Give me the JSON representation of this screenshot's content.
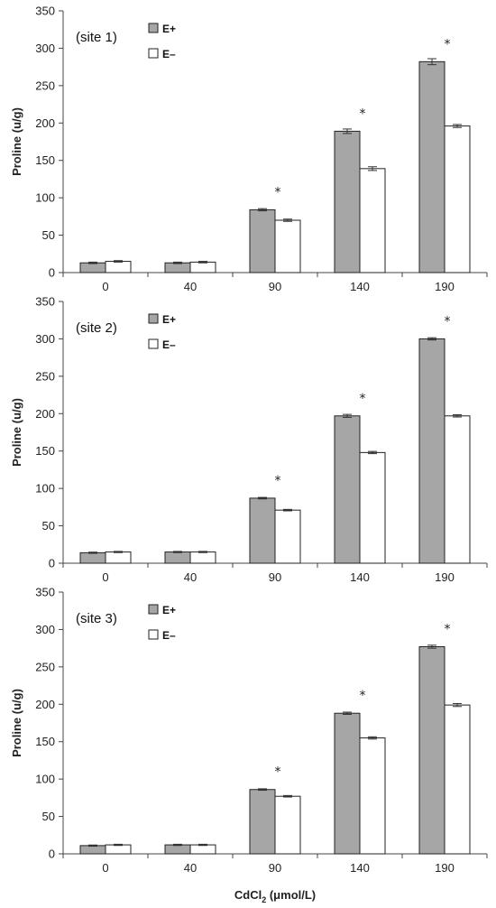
{
  "chart_data": [
    {
      "type": "bar",
      "panel_label": "(site 1)",
      "categories": [
        "0",
        "40",
        "90",
        "140",
        "190"
      ],
      "series": [
        {
          "name": "E+",
          "color": "#a6a6a6",
          "values": [
            13,
            13,
            84,
            189,
            282
          ],
          "errors": [
            1,
            1,
            1.5,
            3,
            4
          ]
        },
        {
          "name": "E–",
          "color": "#ffffff",
          "values": [
            15,
            14,
            70,
            139,
            196
          ],
          "errors": [
            1,
            1,
            1.5,
            2.5,
            2
          ]
        }
      ],
      "significance": [
        "",
        "",
        "*",
        "*",
        "*"
      ],
      "ylabel": "Proline (u/g)",
      "yticks": [
        "0",
        "50",
        "100",
        "150",
        "200",
        "250",
        "300",
        "350"
      ],
      "ylim": [
        0,
        350
      ],
      "grid": false,
      "legend_position": "top-left"
    },
    {
      "type": "bar",
      "panel_label": "(site 2)",
      "categories": [
        "0",
        "40",
        "90",
        "140",
        "190"
      ],
      "series": [
        {
          "name": "E+",
          "color": "#a6a6a6",
          "values": [
            14,
            15,
            87,
            197,
            300
          ],
          "errors": [
            0.8,
            0.8,
            1,
            2,
            1.5
          ]
        },
        {
          "name": "E–",
          "color": "#ffffff",
          "values": [
            15,
            15,
            71,
            148,
            197
          ],
          "errors": [
            0.8,
            0.8,
            1,
            1.5,
            1.5
          ]
        }
      ],
      "significance": [
        "",
        "",
        "*",
        "*",
        "*"
      ],
      "ylabel": "Proline (u/g)",
      "yticks": [
        "0",
        "50",
        "100",
        "150",
        "200",
        "250",
        "300",
        "350"
      ],
      "ylim": [
        0,
        350
      ],
      "grid": false,
      "legend_position": "top-left"
    },
    {
      "type": "bar",
      "panel_label": "(site 3)",
      "categories": [
        "0",
        "40",
        "90",
        "140",
        "190"
      ],
      "series": [
        {
          "name": "E+",
          "color": "#a6a6a6",
          "values": [
            11,
            12,
            86,
            188,
            277
          ],
          "errors": [
            0.8,
            0.8,
            1,
            1.5,
            2
          ]
        },
        {
          "name": "E–",
          "color": "#ffffff",
          "values": [
            12,
            12,
            77,
            155,
            199
          ],
          "errors": [
            0.8,
            0.8,
            1,
            1.5,
            2
          ]
        }
      ],
      "significance": [
        "",
        "",
        "*",
        "*",
        "*"
      ],
      "ylabel": "Proline (u/g)",
      "yticks": [
        "0",
        "50",
        "100",
        "150",
        "200",
        "250",
        "300",
        "350"
      ],
      "ylim": [
        0,
        350
      ],
      "grid": false,
      "legend_position": "top-left"
    }
  ],
  "xlabel": {
    "main": "CdCl",
    "subscript": "2",
    "unit": " (μmol/L)"
  }
}
